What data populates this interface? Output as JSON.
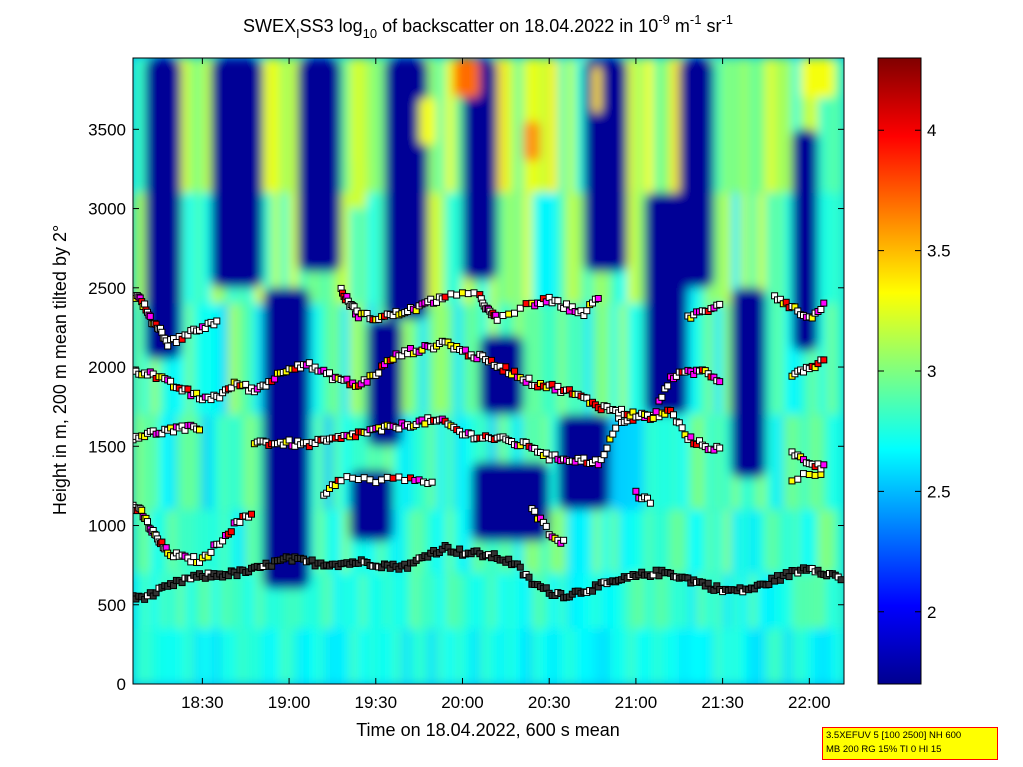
{
  "chart_data": {
    "type": "heatmap",
    "title": {
      "prefix": "SWEX",
      "sub": "I",
      "mid": "SS3 log",
      "log_sub": "10",
      "mid2": " of backscatter on 18.04.2022 in 10",
      "exp1": "-9",
      "mid3": " m",
      "exp2": "-1",
      "mid4": " sr",
      "exp3": "-1"
    },
    "xlabel": "Time on 18.04.2022, 600 s mean",
    "ylabel": "Height in m, 200 m mean tilted by 2°",
    "x_unit": "hours",
    "xlim": [
      18.1,
      22.2
    ],
    "ylim": [
      0,
      3950
    ],
    "x_ticks": [
      {
        "value": 18.5,
        "label": "18:30"
      },
      {
        "value": 19.0,
        "label": "19:00"
      },
      {
        "value": 19.5,
        "label": "19:30"
      },
      {
        "value": 20.0,
        "label": "20:00"
      },
      {
        "value": 20.5,
        "label": "20:30"
      },
      {
        "value": 21.0,
        "label": "21:00"
      },
      {
        "value": 21.5,
        "label": "21:30"
      },
      {
        "value": 22.0,
        "label": "22:00"
      }
    ],
    "y_ticks": [
      {
        "value": 0,
        "label": "0"
      },
      {
        "value": 500,
        "label": "500"
      },
      {
        "value": 1000,
        "label": "1000"
      },
      {
        "value": 1500,
        "label": "1500"
      },
      {
        "value": 2000,
        "label": "2000"
      },
      {
        "value": 2500,
        "label": "2500"
      },
      {
        "value": 3000,
        "label": "3000"
      },
      {
        "value": 3500,
        "label": "3500"
      }
    ],
    "colorbar": {
      "colormap": "jet",
      "range": [
        1.7,
        4.3
      ],
      "ticks": [
        {
          "value": 2.0,
          "label": "2"
        },
        {
          "value": 2.5,
          "label": "2.5"
        },
        {
          "value": 3.0,
          "label": "3"
        },
        {
          "value": 3.5,
          "label": "3.5"
        },
        {
          "value": 4.0,
          "label": "4"
        }
      ]
    },
    "cloud_blocks": [
      {
        "t": [
          18.17,
          18.38
        ],
        "z": [
          2050,
          3950
        ]
      },
      {
        "t": [
          18.55,
          18.85
        ],
        "z": [
          2500,
          3950
        ]
      },
      {
        "t": [
          18.85,
          19.12
        ],
        "z": [
          600,
          2500
        ]
      },
      {
        "t": [
          19.05,
          19.3
        ],
        "z": [
          2600,
          3950
        ]
      },
      {
        "t": [
          19.45,
          19.65
        ],
        "z": [
          1500,
          2300
        ]
      },
      {
        "t": [
          19.55,
          19.8
        ],
        "z": [
          2300,
          3950
        ]
      },
      {
        "t": [
          19.35,
          19.6
        ],
        "z": [
          900,
          1350
        ]
      },
      {
        "t": [
          20.0,
          20.2
        ],
        "z": [
          2550,
          3950
        ]
      },
      {
        "t": [
          20.1,
          20.35
        ],
        "z": [
          1700,
          2200
        ]
      },
      {
        "t": [
          20.05,
          20.5
        ],
        "z": [
          900,
          1400
        ]
      },
      {
        "t": [
          20.55,
          20.85
        ],
        "z": [
          1100,
          1700
        ]
      },
      {
        "t": [
          20.7,
          20.95
        ],
        "z": [
          2600,
          3950
        ]
      },
      {
        "t": [
          21.05,
          21.3
        ],
        "z": [
          1700,
          3100
        ]
      },
      {
        "t": [
          21.25,
          21.45
        ],
        "z": [
          2500,
          3950
        ]
      },
      {
        "t": [
          21.55,
          21.75
        ],
        "z": [
          1300,
          2500
        ]
      },
      {
        "t": [
          21.9,
          22.05
        ],
        "z": [
          2100,
          3500
        ]
      }
    ],
    "bright_blocks": [
      {
        "t": [
          19.95,
          20.1
        ],
        "z": [
          3700,
          3950
        ],
        "v": 3.7
      },
      {
        "t": [
          20.35,
          20.45
        ],
        "z": [
          3300,
          3550
        ],
        "v": 3.6
      },
      {
        "t": [
          19.75,
          19.85
        ],
        "z": [
          3400,
          3700
        ],
        "v": 3.3
      },
      {
        "t": [
          20.75,
          20.8
        ],
        "z": [
          3600,
          3900
        ],
        "v": 3.4
      },
      {
        "t": [
          19.35,
          19.45
        ],
        "z": [
          3000,
          3300
        ],
        "v": 3.2
      },
      {
        "t": [
          21.95,
          22.15
        ],
        "z": [
          3700,
          3950
        ],
        "v": 3.3
      }
    ],
    "layer_markers": [
      {
        "name": "boundary-layer",
        "points": [
          [
            18.1,
            540
          ],
          [
            18.2,
            560
          ],
          [
            18.3,
            610
          ],
          [
            18.4,
            660
          ],
          [
            18.5,
            680
          ],
          [
            18.6,
            690
          ],
          [
            18.7,
            700
          ],
          [
            18.8,
            720
          ],
          [
            18.9,
            760
          ],
          [
            19.0,
            790
          ],
          [
            19.1,
            770
          ],
          [
            19.2,
            760
          ],
          [
            19.3,
            760
          ],
          [
            19.4,
            770
          ],
          [
            19.5,
            760
          ],
          [
            19.6,
            740
          ],
          [
            19.7,
            750
          ],
          [
            19.8,
            820
          ],
          [
            19.9,
            860
          ],
          [
            20.0,
            830
          ],
          [
            20.1,
            820
          ],
          [
            20.2,
            800
          ],
          [
            20.3,
            760
          ],
          [
            20.4,
            640
          ],
          [
            20.5,
            580
          ],
          [
            20.6,
            560
          ],
          [
            20.7,
            590
          ],
          [
            20.8,
            620
          ],
          [
            20.9,
            650
          ],
          [
            21.0,
            680
          ],
          [
            21.1,
            700
          ],
          [
            21.2,
            700
          ],
          [
            21.3,
            660
          ],
          [
            21.4,
            630
          ],
          [
            21.5,
            590
          ],
          [
            21.6,
            590
          ],
          [
            21.7,
            610
          ],
          [
            21.8,
            660
          ],
          [
            21.9,
            700
          ],
          [
            22.0,
            740
          ],
          [
            22.1,
            700
          ],
          [
            22.2,
            660
          ]
        ]
      },
      {
        "name": "layer-1000",
        "points": [
          [
            18.1,
            1120
          ],
          [
            18.15,
            1080
          ],
          [
            18.2,
            980
          ],
          [
            18.25,
            900
          ],
          [
            18.3,
            830
          ],
          [
            18.4,
            790
          ],
          [
            18.5,
            780
          ],
          [
            18.6,
            900
          ],
          [
            18.7,
            1020
          ],
          [
            18.8,
            1080
          ],
          [
            19.2,
            1200
          ],
          [
            19.3,
            1300
          ],
          [
            19.5,
            1280
          ],
          [
            19.7,
            1300
          ],
          [
            19.85,
            1250
          ],
          [
            20.4,
            1100
          ],
          [
            20.5,
            960
          ],
          [
            20.6,
            880
          ],
          [
            21.0,
            1200
          ],
          [
            21.1,
            1150
          ],
          [
            21.6,
            1250
          ],
          [
            21.9,
            1300
          ],
          [
            22.1,
            1330
          ]
        ]
      },
      {
        "name": "layer-1600",
        "points": [
          [
            18.1,
            1560
          ],
          [
            18.2,
            1580
          ],
          [
            18.3,
            1600
          ],
          [
            18.4,
            1610
          ],
          [
            18.5,
            1620
          ],
          [
            18.8,
            1530
          ],
          [
            18.9,
            1520
          ],
          [
            19.0,
            1520
          ],
          [
            19.1,
            1510
          ],
          [
            19.2,
            1530
          ],
          [
            19.3,
            1550
          ],
          [
            19.4,
            1580
          ],
          [
            19.5,
            1600
          ],
          [
            19.6,
            1620
          ],
          [
            19.7,
            1640
          ],
          [
            19.8,
            1660
          ],
          [
            19.9,
            1650
          ],
          [
            20.0,
            1580
          ],
          [
            20.1,
            1560
          ],
          [
            20.2,
            1550
          ],
          [
            20.3,
            1520
          ],
          [
            20.4,
            1500
          ],
          [
            20.5,
            1430
          ],
          [
            20.6,
            1420
          ],
          [
            20.7,
            1410
          ],
          [
            20.8,
            1400
          ],
          [
            20.9,
            1660
          ],
          [
            21.0,
            1680
          ],
          [
            21.1,
            1690
          ],
          [
            21.2,
            1720
          ],
          [
            21.3,
            1550
          ],
          [
            21.4,
            1500
          ],
          [
            21.5,
            1480
          ],
          [
            21.9,
            1450
          ],
          [
            22.0,
            1400
          ],
          [
            22.1,
            1360
          ]
        ]
      },
      {
        "name": "layer-2000",
        "points": [
          [
            18.1,
            1980
          ],
          [
            18.2,
            1960
          ],
          [
            18.3,
            1900
          ],
          [
            18.4,
            1850
          ],
          [
            18.5,
            1800
          ],
          [
            18.6,
            1820
          ],
          [
            18.7,
            1900
          ],
          [
            18.8,
            1850
          ],
          [
            18.9,
            1920
          ],
          [
            19.0,
            2000
          ],
          [
            19.1,
            2020
          ],
          [
            19.2,
            1960
          ],
          [
            19.3,
            1920
          ],
          [
            19.4,
            1880
          ],
          [
            19.5,
            1960
          ],
          [
            19.6,
            2060
          ],
          [
            19.7,
            2100
          ],
          [
            19.8,
            2120
          ],
          [
            19.9,
            2160
          ],
          [
            20.0,
            2100
          ],
          [
            20.1,
            2060
          ],
          [
            20.2,
            2010
          ],
          [
            20.3,
            1960
          ],
          [
            20.4,
            1900
          ],
          [
            20.5,
            1880
          ],
          [
            20.6,
            1850
          ],
          [
            20.7,
            1800
          ],
          [
            20.8,
            1750
          ],
          [
            20.9,
            1720
          ],
          [
            21.0,
            1700
          ],
          [
            21.1,
            1680
          ],
          [
            21.2,
            1940
          ],
          [
            21.3,
            1960
          ],
          [
            21.4,
            1980
          ],
          [
            21.5,
            1900
          ],
          [
            21.9,
            1960
          ],
          [
            22.0,
            2000
          ],
          [
            22.1,
            2050
          ]
        ]
      },
      {
        "name": "layer-2400",
        "points": [
          [
            18.1,
            2460
          ],
          [
            18.15,
            2420
          ],
          [
            18.2,
            2300
          ],
          [
            18.25,
            2250
          ],
          [
            18.3,
            2150
          ],
          [
            18.4,
            2200
          ],
          [
            18.5,
            2250
          ],
          [
            18.6,
            2300
          ],
          [
            19.3,
            2480
          ],
          [
            19.35,
            2400
          ],
          [
            19.4,
            2330
          ],
          [
            19.5,
            2310
          ],
          [
            19.6,
            2330
          ],
          [
            19.7,
            2360
          ],
          [
            19.8,
            2400
          ],
          [
            19.9,
            2450
          ],
          [
            20.1,
            2450
          ],
          [
            20.15,
            2350
          ],
          [
            20.2,
            2300
          ],
          [
            20.4,
            2400
          ],
          [
            20.5,
            2420
          ],
          [
            20.6,
            2380
          ],
          [
            20.7,
            2340
          ],
          [
            20.8,
            2450
          ],
          [
            21.3,
            2320
          ],
          [
            21.4,
            2350
          ],
          [
            21.5,
            2420
          ],
          [
            21.8,
            2450
          ],
          [
            21.9,
            2380
          ],
          [
            22.0,
            2300
          ],
          [
            22.1,
            2420
          ]
        ]
      }
    ]
  },
  "info_box": {
    "line1": "3.5XEFUV 5 [100 2500] NH 600",
    "line2": "MB 200 RG 15% TI 0 HI 15"
  }
}
